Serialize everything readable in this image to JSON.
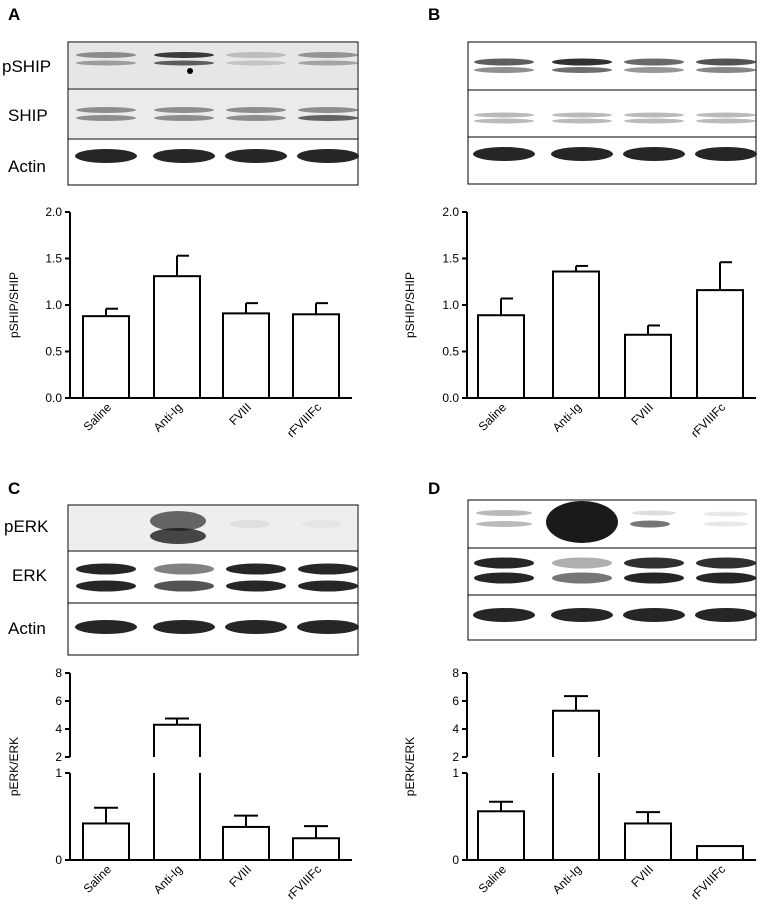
{
  "panels": {
    "A": {
      "letter": "A",
      "labels": [
        "pSHIP",
        "SHIP",
        "Actin"
      ]
    },
    "B": {
      "letter": "B",
      "labels": []
    },
    "C": {
      "letter": "C",
      "labels": [
        "pERK",
        "ERK",
        "Actin"
      ]
    },
    "D": {
      "letter": "D",
      "labels": []
    }
  },
  "chart_data": [
    {
      "panel": "A",
      "type": "bar",
      "categories": [
        "Saline",
        "Anti-Ig",
        "FVIII",
        "rFVIIIFc"
      ],
      "values": [
        0.88,
        1.31,
        0.91,
        0.9
      ],
      "errors": [
        0.08,
        0.22,
        0.11,
        0.12
      ],
      "ylabel": "pSHIP/SHIP",
      "ylim": [
        0,
        2.0
      ],
      "yticks": [
        "0.0",
        "0.5",
        "1.0",
        "1.5",
        "2.0"
      ]
    },
    {
      "panel": "B",
      "type": "bar",
      "categories": [
        "Saline",
        "Anti-Ig",
        "FVIII",
        "rFVIIIFc"
      ],
      "values": [
        0.89,
        1.36,
        0.68,
        1.16
      ],
      "errors": [
        0.18,
        0.06,
        0.1,
        0.3
      ],
      "ylabel": "pSHIP/SHIP",
      "ylim": [
        0,
        2.0
      ],
      "yticks": [
        "0.0",
        "0.5",
        "1.0",
        "1.5",
        "2.0"
      ]
    },
    {
      "panel": "C",
      "type": "bar",
      "categories": [
        "Saline",
        "Anti-Ig",
        "FVIII",
        "rFVIIIFc"
      ],
      "values": [
        0.42,
        4.3,
        0.38,
        0.25
      ],
      "errors": [
        0.18,
        0.45,
        0.13,
        0.14
      ],
      "ylabel": "pERK/ERK",
      "axis_break": {
        "lower": [
          0,
          1
        ],
        "upper": [
          2,
          8
        ]
      },
      "yticks": [
        "0",
        "1",
        "2",
        "4",
        "6",
        "8"
      ]
    },
    {
      "panel": "D",
      "type": "bar",
      "categories": [
        "Saline",
        "Anti-Ig",
        "FVIII",
        "rFVIIIFc"
      ],
      "values": [
        0.56,
        5.3,
        0.42,
        0.16
      ],
      "errors": [
        0.11,
        1.05,
        0.13,
        0.0
      ],
      "ylabel": "pERK/ERK",
      "axis_break": {
        "lower": [
          0,
          1
        ],
        "upper": [
          2,
          8
        ]
      },
      "yticks": [
        "0",
        "1",
        "2",
        "4",
        "6",
        "8"
      ]
    }
  ]
}
